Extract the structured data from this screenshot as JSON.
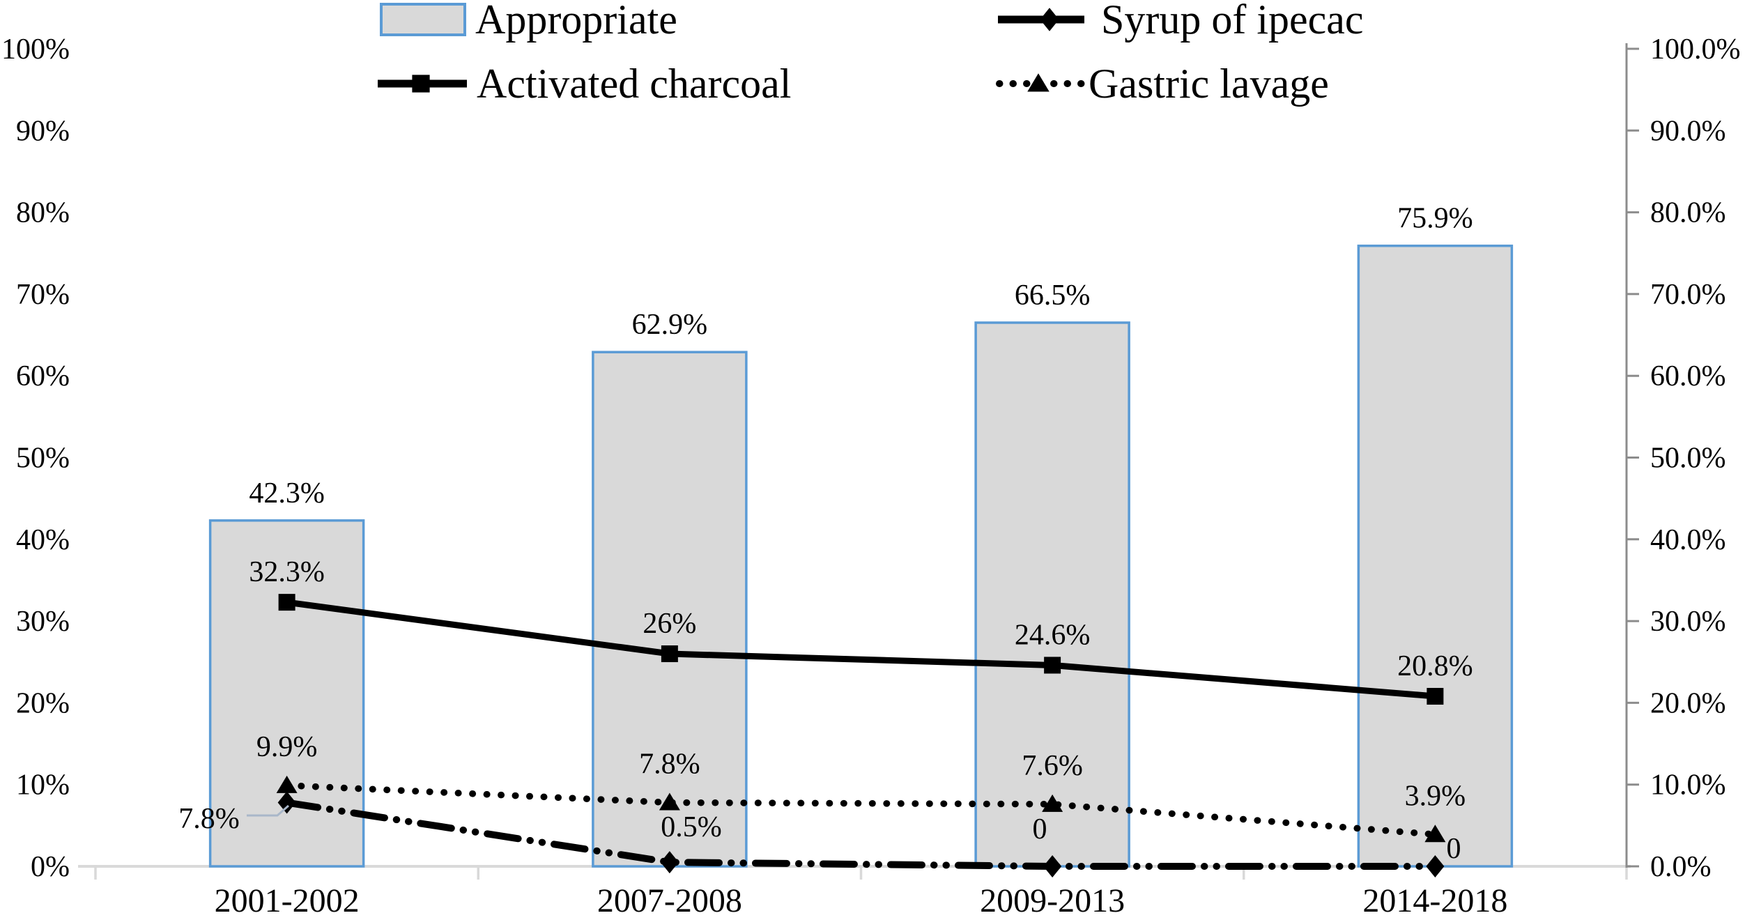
{
  "chart_data": {
    "type": "combo-bar-line",
    "categories": [
      "2001-2002",
      "2007-2008",
      "2009-2013",
      "2014-2018"
    ],
    "bar_series": {
      "name": "Appropriate",
      "values": [
        42.3,
        62.9,
        66.5,
        75.9
      ],
      "labels": [
        "42.3%",
        "62.9%",
        "66.5%",
        "75.9%"
      ],
      "fill_color": "#d9d9d9",
      "border_color": "#5b9bd5"
    },
    "line_series": [
      {
        "name": "Syrup of ipecac",
        "marker": "diamond",
        "line_style": "dash-dot-dot",
        "color": "#000000",
        "values": [
          7.8,
          0.5,
          0,
          0
        ],
        "labels": [
          "7.8%",
          "0.5%",
          "0",
          "0"
        ]
      },
      {
        "name": "Activated charcoal",
        "marker": "square",
        "line_style": "solid",
        "color": "#000000",
        "values": [
          32.3,
          26,
          24.6,
          20.8
        ],
        "labels": [
          "32.3%",
          "26%",
          "24.6%",
          "20.8%"
        ]
      },
      {
        "name": "Gastric lavage",
        "marker": "triangle",
        "line_style": "dotted",
        "color": "#000000",
        "values": [
          9.9,
          7.8,
          7.6,
          3.9
        ],
        "labels": [
          "9.9%",
          "7.8%",
          "7.6%",
          "3.9%"
        ]
      }
    ],
    "left_axis": {
      "ticks": [
        "100%",
        "90%",
        "80%",
        "70%",
        "60%",
        "50%",
        "40%",
        "30%",
        "20%",
        "10%",
        "0%"
      ],
      "min": 0,
      "max": 100
    },
    "right_axis": {
      "ticks": [
        "100.0%",
        "90.0%",
        "80.0%",
        "70.0%",
        "60.0%",
        "50.0%",
        "40.0%",
        "30.0%",
        "20.0%",
        "10.0%",
        "0.0%"
      ],
      "min": 0,
      "max": 100
    },
    "legend_position": "top",
    "grid": false,
    "annotation": {
      "text": "7.8%",
      "series": "Syrup of ipecac",
      "category_index": 0,
      "leader_color": "#a9b7c9"
    },
    "axis_colors": {
      "x_axis_line": "#d9d9d9",
      "right_axis_line": "#8c8c8c"
    }
  }
}
